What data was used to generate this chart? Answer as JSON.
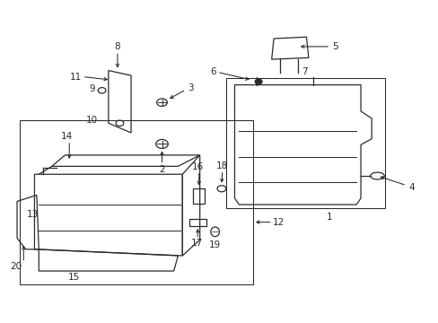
{
  "bg_color": "#ffffff",
  "line_color": "#2a2a2a",
  "label_fontsize": 7.5
}
